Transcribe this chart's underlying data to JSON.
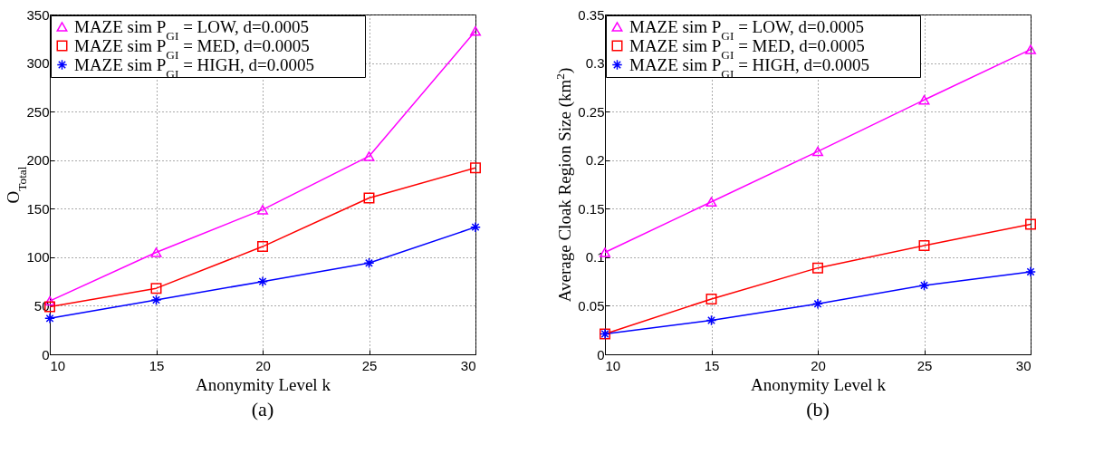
{
  "chart_data": [
    {
      "type": "line",
      "xlabel": "Anonymity Level k",
      "ylabel": "O$_{Total}$",
      "annotations": [
        "(a)"
      ],
      "x": [
        10,
        15,
        20,
        25,
        30
      ],
      "xlim": [
        10,
        30
      ],
      "xticks": [
        10,
        15,
        20,
        25,
        30
      ],
      "ylim": [
        0,
        350
      ],
      "yticks": [
        0,
        50,
        100,
        150,
        200,
        250,
        300,
        350
      ],
      "grid": true,
      "legend": "top left",
      "series": [
        {
          "name": "MAZE sim P$_{GI}$ = LOW, d=0.0005",
          "color": "#ff00ff",
          "marker": "triangle",
          "values": [
            55,
            105,
            149,
            204,
            333
          ]
        },
        {
          "name": "MAZE sim P$_{GI}$ = MED, d=0.0005",
          "color": "#ff0000",
          "marker": "square",
          "values": [
            49,
            68,
            111,
            161,
            192
          ]
        },
        {
          "name": "MAZE sim P$_{GI}$ = HIGH, d=0.0005",
          "color": "#0000ff",
          "marker": "cross",
          "values": [
            37,
            56,
            75,
            94,
            131
          ]
        }
      ]
    },
    {
      "type": "line",
      "xlabel": "Anonymity Level k",
      "ylabel": "Average Cloak Region Size (km$^{2}$)",
      "annotations": [
        "(b)"
      ],
      "x": [
        10,
        15,
        20,
        25,
        30
      ],
      "xlim": [
        10,
        30
      ],
      "xticks": [
        10,
        15,
        20,
        25,
        30
      ],
      "ylim": [
        0,
        0.35
      ],
      "yticks": [
        0,
        0.05,
        0.1,
        0.15,
        0.2,
        0.25,
        0.3,
        0.35
      ],
      "grid": true,
      "legend": "top left",
      "series": [
        {
          "name": "MAZE sim P$_{GI}$ = LOW, d=0.0005",
          "color": "#ff00ff",
          "marker": "triangle",
          "values": [
            0.105,
            0.157,
            0.209,
            0.262,
            0.314
          ]
        },
        {
          "name": "MAZE sim P$_{GI}$ = MED, d=0.0005",
          "color": "#ff0000",
          "marker": "square",
          "values": [
            0.021,
            0.057,
            0.089,
            0.112,
            0.134
          ]
        },
        {
          "name": "MAZE sim P$_{GI}$ = HIGH, d=0.0005",
          "color": "#0000ff",
          "marker": "cross",
          "values": [
            0.021,
            0.035,
            0.052,
            0.071,
            0.085
          ]
        }
      ]
    }
  ]
}
